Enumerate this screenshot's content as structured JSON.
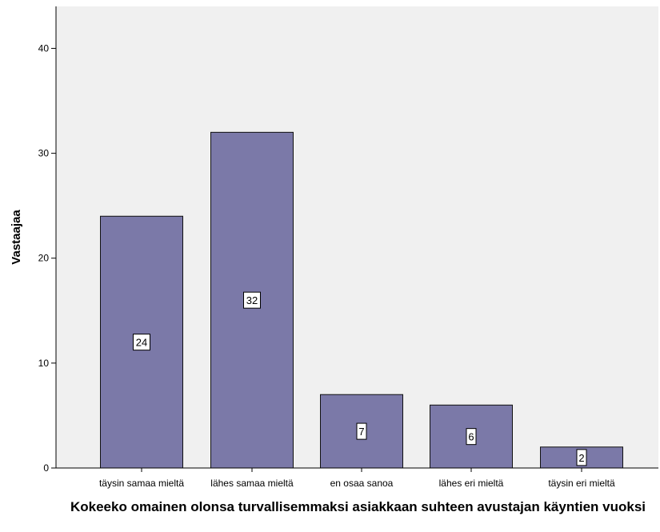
{
  "chart_data": {
    "type": "bar",
    "categories": [
      "täysin samaa mieltä",
      "lähes samaa mieltä",
      "en osaa sanoa",
      "lähes eri mieltä",
      "täysin eri mieltä"
    ],
    "values": [
      24,
      32,
      7,
      6,
      2
    ],
    "data_labels": [
      "24",
      "32",
      "7",
      "6",
      "2"
    ],
    "xlabel": "Kokeeko omainen olonsa turvallisemmaksi asiakkaan suhteen avustajan käyntien vuoksi",
    "ylabel": "Vastaajaa",
    "ylim": [
      0,
      44
    ],
    "yticks": [
      0,
      10,
      20,
      30,
      40
    ],
    "grid": false,
    "colors": {
      "bar": "#7b79a8",
      "bar_edge": "#111111",
      "plot_bg": "#f0f0f0",
      "label_box": "#ffffff"
    }
  }
}
